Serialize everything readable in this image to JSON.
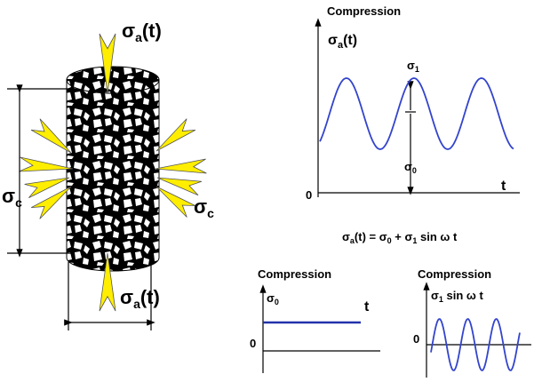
{
  "specimen": {
    "axial_top": [
      "σ",
      "a",
      "(t)"
    ],
    "axial_bottom": [
      "σ",
      "a",
      "(t)"
    ],
    "confining_left": [
      "σ",
      "c"
    ],
    "confining_right": [
      "σ",
      "c"
    ]
  },
  "graph_main": {
    "title": "Compression",
    "y_label": [
      "σ",
      "a",
      "(t)"
    ],
    "amplitude_label": [
      "σ",
      "1"
    ],
    "mean_label": [
      "σ",
      "0"
    ],
    "origin": "0",
    "x_label": "t",
    "equation": [
      "σ",
      "a",
      "(t) = σ",
      "0",
      " + σ",
      "1",
      " sin ω t"
    ]
  },
  "graph_static": {
    "title": "Compression",
    "y_label": [
      "σ",
      "0"
    ],
    "x_label": "t",
    "origin": "0"
  },
  "graph_cyclic": {
    "title": "Compression",
    "y_label": [
      "σ",
      "1",
      " sin ω t"
    ],
    "origin": "0"
  }
}
